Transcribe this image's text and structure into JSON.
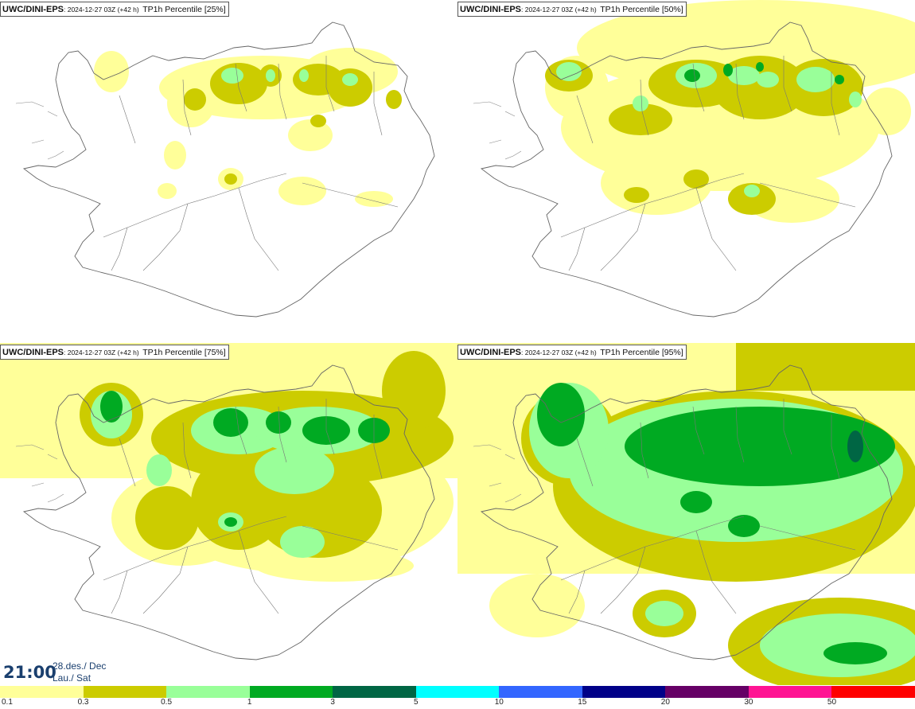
{
  "panels": [
    {
      "model": "UWC/DINI-EPS",
      "run": ": 2024-12-27 03Z (+42 h)",
      "param": "TP1h Percentile [25%]"
    },
    {
      "model": "UWC/DINI-EPS",
      "run": ": 2024-12-27 03Z (+42 h)",
      "param": "TP1h Percentile [50%]"
    },
    {
      "model": "UWC/DINI-EPS",
      "run": ": 2024-12-27 03Z (+42 h)",
      "param": "TP1h Percentile [75%]"
    },
    {
      "model": "UWC/DINI-EPS",
      "run": ": 2024-12-27 03Z (+42 h)",
      "param": "TP1h Percentile [95%]"
    }
  ],
  "clock": {
    "time": "21:00",
    "date_line1": "28.des./ Dec",
    "date_line2": "Lau./ Sat"
  },
  "colorbar": {
    "colors": [
      "#ffff99",
      "#cccc00",
      "#99ff99",
      "#00aa22",
      "#006644",
      "#00ffff",
      "#3366ff",
      "#000088",
      "#660066",
      "#ff1493",
      "#ff0000"
    ],
    "ticks": [
      "0.1",
      "0.3",
      "0.5",
      "1",
      "3",
      "5",
      "10",
      "15",
      "20",
      "30",
      "50"
    ]
  }
}
